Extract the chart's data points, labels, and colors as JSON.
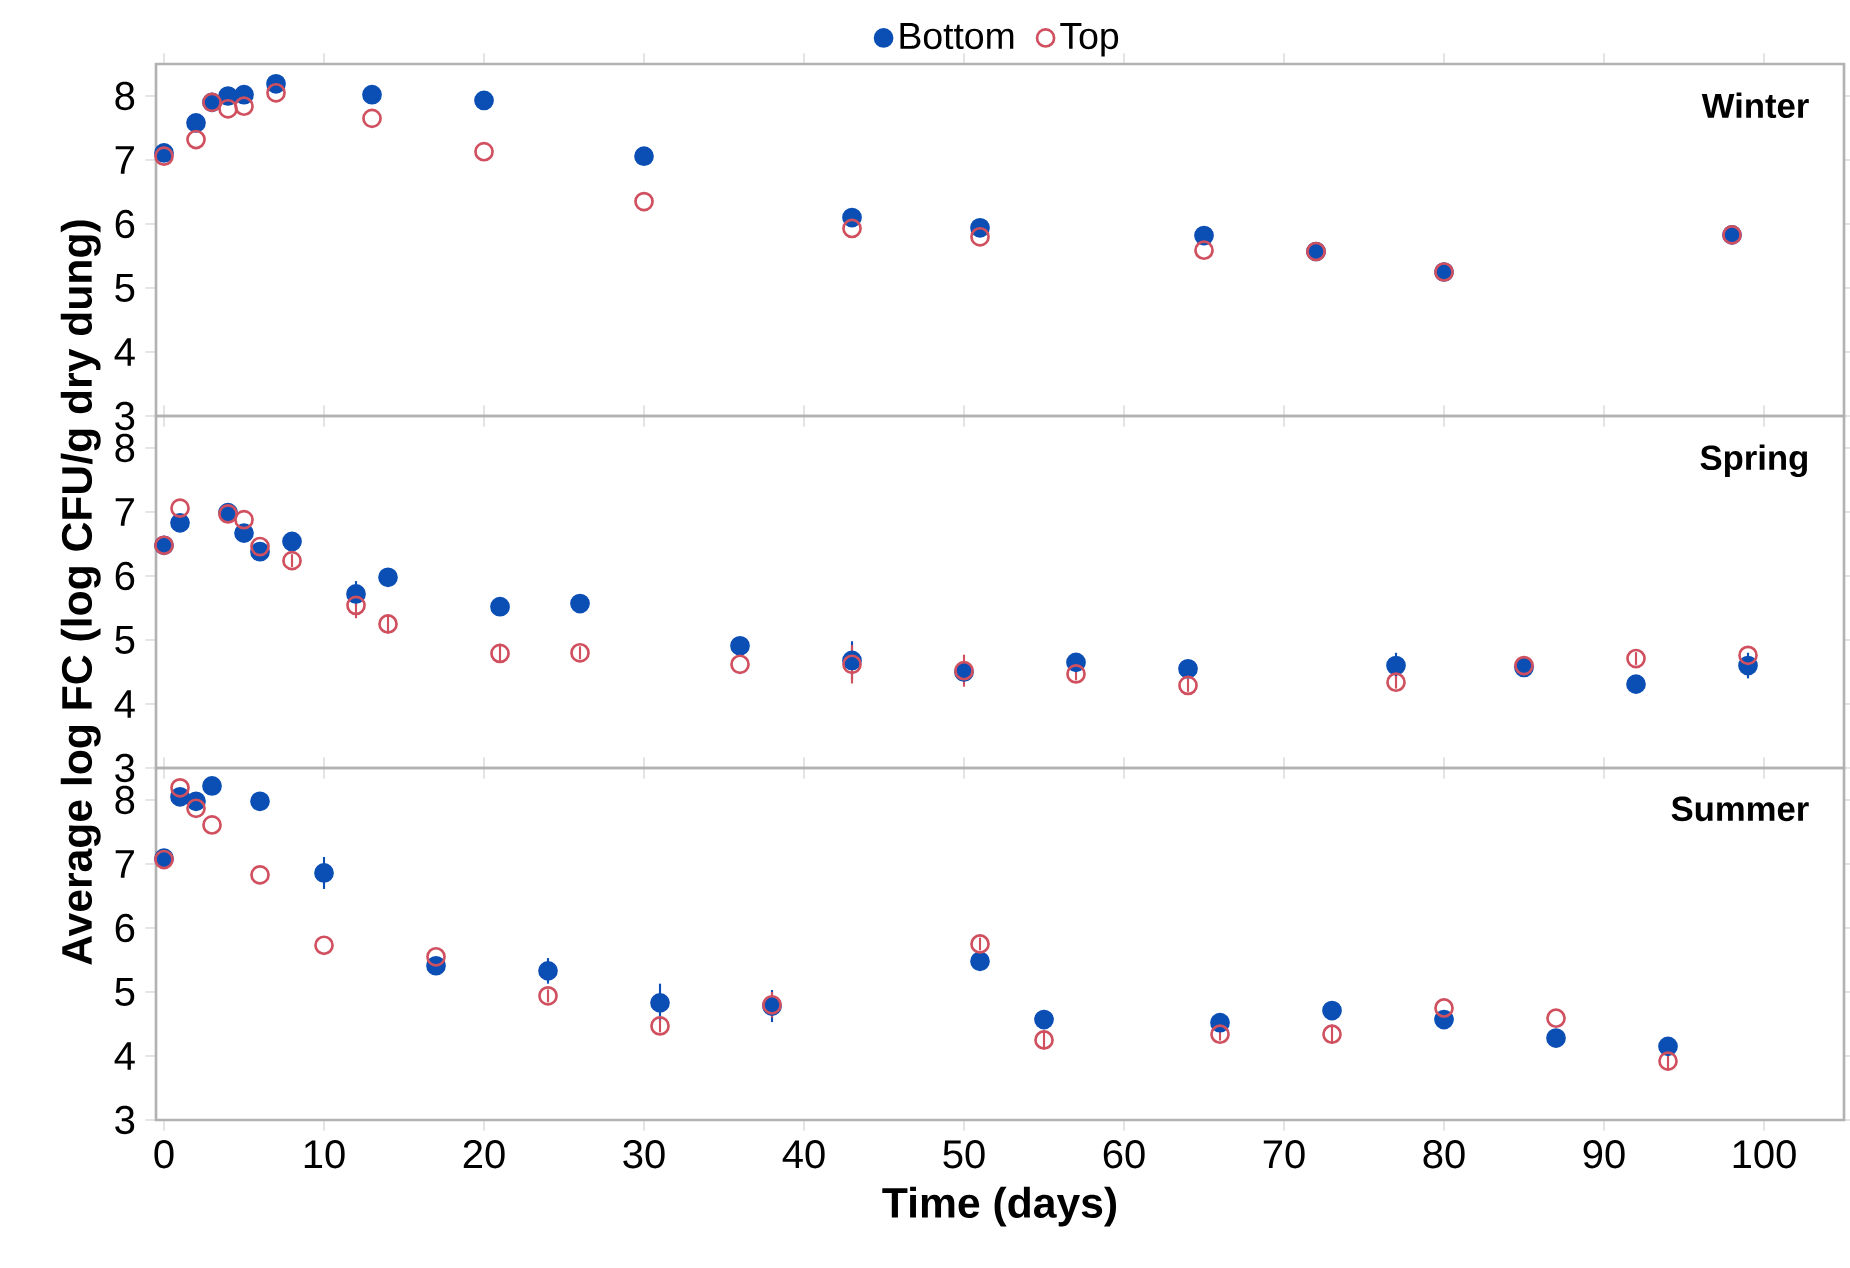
{
  "chart_data": [
    {
      "type": "scatter",
      "title": "Winter",
      "legend": "top",
      "marker": "circle",
      "tick_labels": "y",
      "xlim": [
        -0.5,
        105
      ],
      "xticks": [
        0,
        10,
        20,
        30,
        40,
        50,
        60,
        70,
        80,
        90,
        100
      ],
      "ylim": [
        3,
        8.5
      ],
      "yticks": [
        3,
        4,
        5,
        6,
        7,
        8
      ],
      "x": [
        0,
        2,
        3,
        4,
        5,
        7,
        13,
        20,
        30,
        43,
        51,
        65,
        72,
        80,
        98
      ],
      "series": [
        {
          "name": "Bottom",
          "color": "#0b4fb5",
          "values": [
            7.11,
            7.58,
            7.9,
            8.0,
            8.02,
            8.19,
            8.02,
            7.93,
            7.06,
            6.1,
            5.94,
            5.82,
            5.57,
            5.25,
            5.83
          ]
        },
        {
          "name": "Top",
          "color": "#d05060",
          "values": [
            7.06,
            7.32,
            7.9,
            7.8,
            7.84,
            8.05,
            7.65,
            7.13,
            6.35,
            5.93,
            5.8,
            5.59,
            5.57,
            5.25,
            5.83
          ]
        }
      ]
    },
    {
      "type": "scatter",
      "title": "Spring",
      "ylabel": "Average log FC (log CFU/g dry dung)",
      "marker": "circle",
      "tick_labels": "y",
      "xlim": [
        -0.5,
        105
      ],
      "xticks": [
        0,
        10,
        20,
        30,
        40,
        50,
        60,
        70,
        80,
        90,
        100
      ],
      "ylim": [
        3,
        8.5
      ],
      "yticks": [
        3,
        4,
        5,
        6,
        7,
        8
      ],
      "x": [
        0,
        1,
        4,
        5,
        6,
        8,
        12,
        14,
        21,
        26,
        36,
        43,
        50,
        57,
        64,
        77,
        85,
        92,
        99
      ],
      "series": [
        {
          "color": "#0b4fb5",
          "values": [
            6.48,
            6.83,
            6.99,
            6.67,
            6.38,
            6.54,
            5.72,
            5.98,
            5.52,
            5.57,
            4.91,
            4.68,
            4.5,
            4.65,
            4.55,
            4.6,
            4.57,
            4.31,
            4.6
          ],
          "errors": [
            null,
            null,
            null,
            null,
            null,
            null,
            0.2,
            null,
            0.1,
            null,
            null,
            0.3,
            0.1,
            0.1,
            null,
            0.2,
            null,
            null,
            0.2
          ]
        },
        {
          "color": "#d05060",
          "values": [
            6.48,
            7.06,
            6.97,
            6.88,
            6.46,
            6.24,
            5.54,
            5.25,
            4.79,
            4.8,
            4.62,
            4.62,
            4.52,
            4.47,
            4.29,
            4.34,
            4.6,
            4.71,
            4.76
          ],
          "errors": [
            null,
            null,
            null,
            null,
            null,
            0.1,
            0.2,
            0.15,
            0.15,
            0.1,
            null,
            0.3,
            0.25,
            0.1,
            0.1,
            0.1,
            null,
            0.1,
            null
          ]
        }
      ]
    },
    {
      "type": "scatter",
      "title": "Summer",
      "xlabel": "Time (days)",
      "marker": "circle",
      "xlim": [
        -0.5,
        105
      ],
      "xticks": [
        0,
        10,
        20,
        30,
        40,
        50,
        60,
        70,
        80,
        90,
        100
      ],
      "ylim": [
        3,
        8.5
      ],
      "yticks": [
        3,
        4,
        5,
        6,
        7,
        8
      ],
      "x": [
        0,
        1,
        2,
        3,
        6,
        10,
        17,
        24,
        31,
        38,
        51,
        55,
        66,
        73,
        80,
        87,
        94
      ],
      "series": [
        {
          "color": "#0b4fb5",
          "values": [
            7.09,
            8.05,
            7.98,
            8.22,
            7.98,
            6.86,
            5.41,
            5.33,
            4.83,
            4.78,
            5.48,
            4.57,
            4.52,
            4.71,
            4.57,
            4.28,
            4.15
          ],
          "errors": [
            null,
            null,
            null,
            null,
            null,
            0.25,
            null,
            0.2,
            0.3,
            0.25,
            null,
            0.15,
            0.1,
            0.1,
            null,
            null,
            null
          ]
        },
        {
          "color": "#d05060",
          "values": [
            7.07,
            8.19,
            7.87,
            7.61,
            6.83,
            5.73,
            5.55,
            4.94,
            4.47,
            4.8,
            5.75,
            4.25,
            4.34,
            4.34,
            4.75,
            4.59,
            3.92
          ],
          "errors": [
            null,
            null,
            null,
            null,
            null,
            null,
            null,
            0.1,
            0.1,
            0.2,
            0.1,
            0.15,
            0.1,
            0.15,
            null,
            null,
            0.15
          ]
        }
      ]
    }
  ]
}
